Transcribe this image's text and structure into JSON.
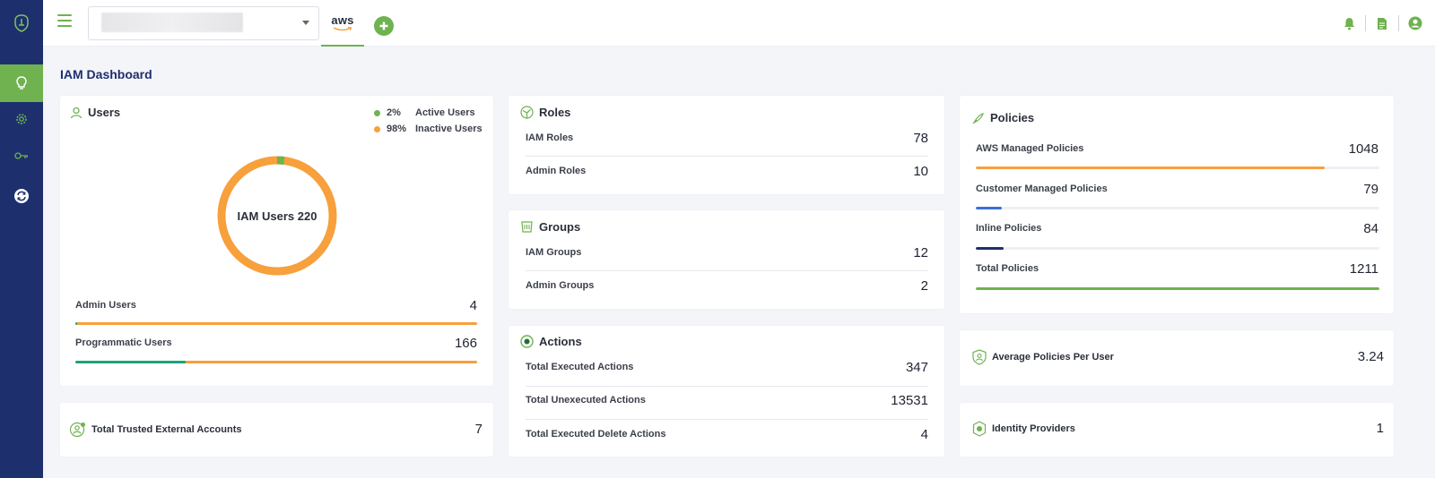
{
  "colors": {
    "sidebar": "#1e2f6e",
    "accent_green": "#6fb24f",
    "orange": "#f7a03c",
    "blue": "#3a6fd8",
    "navy": "#1e2f6e",
    "teal": "#1aa37a"
  },
  "sidebar": {
    "items": [
      {
        "icon": "lightbulb-icon",
        "active": true
      },
      {
        "icon": "gear-icon",
        "active": false
      },
      {
        "icon": "key-icon",
        "active": false
      },
      {
        "icon": "sync-icon",
        "active": false
      }
    ]
  },
  "topbar": {
    "cloud_tab": "aws"
  },
  "page": {
    "title": "IAM Dashboard"
  },
  "users": {
    "title": "Users",
    "legend": [
      {
        "pct": "2%",
        "label": "Active Users",
        "color": "#6fb24f"
      },
      {
        "pct": "98%",
        "label": "Inactive Users",
        "color": "#f7a03c"
      }
    ],
    "donut_label": "IAM Users 220",
    "active_fraction": 0.02,
    "rows": [
      {
        "label": "Admin Users",
        "value": "4",
        "fill": 0.005,
        "fill_color": "#1aa37a"
      },
      {
        "label": "Programmatic Users",
        "value": "166",
        "fill": 0.275,
        "fill_color": "#1aa37a"
      }
    ]
  },
  "trusted": {
    "label": "Total Trusted External Accounts",
    "value": "7"
  },
  "roles": {
    "title": "Roles",
    "rows": [
      {
        "label": "IAM Roles",
        "value": "78"
      },
      {
        "label": "Admin Roles",
        "value": "10"
      }
    ]
  },
  "groups": {
    "title": "Groups",
    "rows": [
      {
        "label": "IAM Groups",
        "value": "12"
      },
      {
        "label": "Admin Groups",
        "value": "2"
      }
    ]
  },
  "actions": {
    "title": "Actions",
    "rows": [
      {
        "label": "Total Executed Actions",
        "value": "347"
      },
      {
        "label": "Total Unexecuted Actions",
        "value": "13531"
      },
      {
        "label": "Total Executed Delete Actions",
        "value": "4"
      }
    ]
  },
  "policies": {
    "title": "Policies",
    "rows": [
      {
        "label": "AWS Managed Policies",
        "value": "1048",
        "fill": 0.865,
        "fill_color": "#f7a03c"
      },
      {
        "label": "Customer Managed Policies",
        "value": "79",
        "fill": 0.065,
        "fill_color": "#3a6fd8"
      },
      {
        "label": "Inline Policies",
        "value": "84",
        "fill": 0.069,
        "fill_color": "#1e2f6e"
      },
      {
        "label": "Total Policies",
        "value": "1211",
        "fill": 1.0,
        "fill_color": "#6fb24f"
      }
    ]
  },
  "avg_policies": {
    "label": "Average Policies Per User",
    "value": "3.24"
  },
  "identity": {
    "label": "Identity Providers",
    "value": "1"
  }
}
